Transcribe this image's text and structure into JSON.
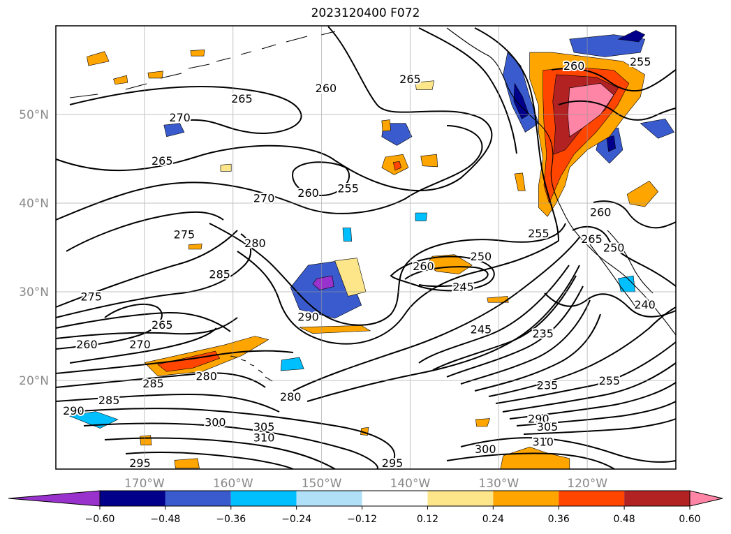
{
  "title": "2023120400 F072",
  "map": {
    "lon_range": [
      -180,
      -110
    ],
    "lat_range": [
      10,
      60
    ],
    "grid": true,
    "lon_labels": [
      {
        "lon": -170,
        "text": "170°W"
      },
      {
        "lon": -160,
        "text": "160°W"
      },
      {
        "lon": -150,
        "text": "150°W"
      },
      {
        "lon": -140,
        "text": "140°W"
      },
      {
        "lon": -130,
        "text": "130°W"
      },
      {
        "lon": -120,
        "text": "120°W"
      }
    ],
    "lat_labels": [
      {
        "lat": 50,
        "text": "50°N"
      },
      {
        "lat": 40,
        "text": "40°N"
      },
      {
        "lat": 30,
        "text": "30°N"
      },
      {
        "lat": 20,
        "text": "20°N"
      }
    ],
    "contour_labels": [
      {
        "text": "265",
        "lon": -168,
        "lat": 44.8
      },
      {
        "text": "265",
        "lon": -159,
        "lat": 51.8
      },
      {
        "text": "260",
        "lon": -149.5,
        "lat": 53
      },
      {
        "text": "265",
        "lon": -140,
        "lat": 54
      },
      {
        "text": "260",
        "lon": -121.5,
        "lat": 55.5
      },
      {
        "text": "255",
        "lon": -114,
        "lat": 56
      },
      {
        "text": "270",
        "lon": -166,
        "lat": 49.7
      },
      {
        "text": "270",
        "lon": -156.5,
        "lat": 40.6
      },
      {
        "text": "260",
        "lon": -151.5,
        "lat": 41.2
      },
      {
        "text": "255",
        "lon": -147,
        "lat": 41.7
      },
      {
        "text": "275",
        "lon": -165.5,
        "lat": 36.5
      },
      {
        "text": "280",
        "lon": -157.5,
        "lat": 35.5
      },
      {
        "text": "285",
        "lon": -161.5,
        "lat": 32
      },
      {
        "text": "275",
        "lon": -176,
        "lat": 29.5
      },
      {
        "text": "260",
        "lon": -176.5,
        "lat": 24.1
      },
      {
        "text": "270",
        "lon": -170.5,
        "lat": 24.1
      },
      {
        "text": "265",
        "lon": -168,
        "lat": 26.3
      },
      {
        "text": "290",
        "lon": -151.5,
        "lat": 27.2
      },
      {
        "text": "260",
        "lon": -138.5,
        "lat": 32.9
      },
      {
        "text": "250",
        "lon": -132,
        "lat": 34
      },
      {
        "text": "245",
        "lon": -134,
        "lat": 30.6
      },
      {
        "text": "255",
        "lon": -125.5,
        "lat": 36.6
      },
      {
        "text": "265",
        "lon": -119.5,
        "lat": 36
      },
      {
        "text": "250",
        "lon": -117,
        "lat": 35
      },
      {
        "text": "260",
        "lon": -118.5,
        "lat": 39
      },
      {
        "text": "240",
        "lon": -113.5,
        "lat": 28.6
      },
      {
        "text": "245",
        "lon": -132,
        "lat": 25.8
      },
      {
        "text": "235",
        "lon": -125,
        "lat": 25.3
      },
      {
        "text": "235",
        "lon": -124.5,
        "lat": 19.5
      },
      {
        "text": "255",
        "lon": -117.5,
        "lat": 20
      },
      {
        "text": "285",
        "lon": -169,
        "lat": 19.7
      },
      {
        "text": "280",
        "lon": -163,
        "lat": 20.5
      },
      {
        "text": "285",
        "lon": -174,
        "lat": 17.8
      },
      {
        "text": "290",
        "lon": -178,
        "lat": 16.6
      },
      {
        "text": "280",
        "lon": -153.5,
        "lat": 18.2
      },
      {
        "text": "300",
        "lon": -162,
        "lat": 15.3
      },
      {
        "text": "305",
        "lon": -156.5,
        "lat": 14.8
      },
      {
        "text": "310",
        "lon": -156.5,
        "lat": 13.6
      },
      {
        "text": "295",
        "lon": -170.5,
        "lat": 10.7
      },
      {
        "text": "295",
        "lon": -142,
        "lat": 10.7
      },
      {
        "text": "300",
        "lon": -131.5,
        "lat": 12.3
      },
      {
        "text": "290",
        "lon": -125.5,
        "lat": 15.7
      },
      {
        "text": "305",
        "lon": -124.5,
        "lat": 14.8
      },
      {
        "text": "310",
        "lon": -125,
        "lat": 13.1
      }
    ]
  },
  "colorbar": {
    "ticks": [
      "−0.60",
      "−0.48",
      "−0.36",
      "−0.24",
      "−0.12",
      "0.12",
      "0.24",
      "0.36",
      "0.48",
      "0.60"
    ],
    "colors": [
      "#9932cc",
      "#00008b",
      "#3a5bcd",
      "#00bfff",
      "#b0e0f8",
      "#ffffff",
      "#fde68a",
      "#ffa500",
      "#ff4500",
      "#b22222",
      "#ff85a6"
    ],
    "extend": "both"
  },
  "fill_patches": [
    {
      "color": "#3a5bcd",
      "points": [
        [
          -151.5,
          33
        ],
        [
          -148,
          33.5
        ],
        [
          -146.5,
          31
        ],
        [
          -145.5,
          28.5
        ],
        [
          -148.5,
          27
        ],
        [
          -152.5,
          28
        ],
        [
          -153.5,
          30.5
        ]
      ]
    },
    {
      "color": "#9932cc",
      "points": [
        [
          -150.5,
          31.5
        ],
        [
          -148.8,
          31.8
        ],
        [
          -148.6,
          30.6
        ],
        [
          -150.2,
          30.2
        ],
        [
          -151,
          30.9
        ]
      ]
    },
    {
      "color": "#3a5bcd",
      "points": [
        [
          -129,
          57
        ],
        [
          -127.5,
          55.5
        ],
        [
          -126.5,
          52
        ],
        [
          -125.5,
          49
        ],
        [
          -127,
          48
        ],
        [
          -128.5,
          51
        ],
        [
          -129.5,
          54.5
        ]
      ]
    },
    {
      "color": "#00008b",
      "points": [
        [
          -128.2,
          53.5
        ],
        [
          -127.3,
          52
        ],
        [
          -126.6,
          50
        ],
        [
          -127.4,
          49.5
        ],
        [
          -128.3,
          51.5
        ]
      ]
    },
    {
      "color": "#3a5bcd",
      "points": [
        [
          -122,
          58.5
        ],
        [
          -117,
          59
        ],
        [
          -113.5,
          58.5
        ],
        [
          -114,
          57
        ],
        [
          -118,
          56.5
        ],
        [
          -121.5,
          57
        ]
      ]
    },
    {
      "color": "#00008b",
      "points": [
        [
          -116.5,
          58.5
        ],
        [
          -114.5,
          59.5
        ],
        [
          -113.5,
          59
        ],
        [
          -114.2,
          58.2
        ]
      ]
    },
    {
      "color": "#3a5bcd",
      "points": [
        [
          -118.5,
          48
        ],
        [
          -116.5,
          48.5
        ],
        [
          -116,
          46
        ],
        [
          -117.5,
          44.5
        ],
        [
          -119,
          46
        ]
      ]
    },
    {
      "color": "#00008b",
      "points": [
        [
          -117.8,
          47.4
        ],
        [
          -117,
          47.6
        ],
        [
          -116.8,
          46.2
        ],
        [
          -117.6,
          45.8
        ]
      ]
    },
    {
      "color": "#3a5bcd",
      "points": [
        [
          -114,
          49
        ],
        [
          -111.2,
          49.5
        ],
        [
          -110.2,
          48
        ],
        [
          -112,
          47.3
        ]
      ]
    },
    {
      "color": "#3a5bcd",
      "points": [
        [
          -143,
          49
        ],
        [
          -140.5,
          49
        ],
        [
          -139.8,
          47.5
        ],
        [
          -141.5,
          46.5
        ],
        [
          -143.2,
          47.5
        ]
      ]
    },
    {
      "color": "#3a5bcd",
      "points": [
        [
          -167.8,
          48.8
        ],
        [
          -166,
          49
        ],
        [
          -165.5,
          48
        ],
        [
          -167.5,
          47.5
        ]
      ]
    },
    {
      "color": "#00bfff",
      "points": [
        [
          -178.5,
          16
        ],
        [
          -175.5,
          16.5
        ],
        [
          -173,
          15.6
        ],
        [
          -175,
          14.6
        ]
      ]
    },
    {
      "color": "#00bfff",
      "points": [
        [
          -154.5,
          22.3
        ],
        [
          -152.5,
          22.6
        ],
        [
          -152,
          21.3
        ],
        [
          -154.6,
          21.1
        ]
      ]
    },
    {
      "color": "#00bfff",
      "points": [
        [
          -147.6,
          37.2
        ],
        [
          -146.7,
          37.2
        ],
        [
          -146.6,
          35.7
        ],
        [
          -147.5,
          35.7
        ]
      ]
    },
    {
      "color": "#00bfff",
      "points": [
        [
          -139.4,
          38.9
        ],
        [
          -138.1,
          38.9
        ],
        [
          -138.2,
          38
        ],
        [
          -139.4,
          38
        ]
      ]
    },
    {
      "color": "#00bfff",
      "points": [
        [
          -116.5,
          31.5
        ],
        [
          -114.8,
          31.8
        ],
        [
          -114.6,
          30
        ],
        [
          -116.2,
          30
        ]
      ]
    },
    {
      "color": "#ffa500",
      "points": [
        [
          -170,
          22
        ],
        [
          -165.5,
          23
        ],
        [
          -161,
          24
        ],
        [
          -157.5,
          25
        ],
        [
          -156,
          24.6
        ],
        [
          -159,
          22.8
        ],
        [
          -163.5,
          21
        ],
        [
          -168.5,
          20.5
        ]
      ]
    },
    {
      "color": "#ff4500",
      "points": [
        [
          -168.5,
          21.8
        ],
        [
          -165.5,
          22.5
        ],
        [
          -162,
          23.3
        ],
        [
          -161.5,
          22.5
        ],
        [
          -164.5,
          21.4
        ],
        [
          -167.5,
          21
        ]
      ]
    },
    {
      "color": "#ffa500",
      "points": [
        [
          -152.5,
          26
        ],
        [
          -145.5,
          26.2
        ],
        [
          -144.5,
          25.6
        ],
        [
          -151,
          25.3
        ]
      ]
    },
    {
      "color": "#ffa500",
      "points": [
        [
          -137.5,
          34
        ],
        [
          -135,
          34.2
        ],
        [
          -133,
          33
        ],
        [
          -134.5,
          32
        ],
        [
          -137,
          32.3
        ],
        [
          -138.2,
          33
        ]
      ]
    },
    {
      "color": "#ffa500",
      "points": [
        [
          -142.8,
          45.2
        ],
        [
          -140.8,
          45.5
        ],
        [
          -140.2,
          44
        ],
        [
          -141.8,
          43.2
        ],
        [
          -143.2,
          44
        ]
      ]
    },
    {
      "color": "#ff4500",
      "points": [
        [
          -141.9,
          44.6
        ],
        [
          -141.2,
          44.7
        ],
        [
          -141,
          44
        ],
        [
          -141.7,
          43.7
        ]
      ]
    },
    {
      "color": "#ffa500",
      "points": [
        [
          -126.5,
          57
        ],
        [
          -124,
          57
        ],
        [
          -120,
          56.5
        ],
        [
          -116,
          56
        ],
        [
          -113.5,
          54.5
        ],
        [
          -114,
          52
        ],
        [
          -116,
          49.5
        ],
        [
          -117.5,
          47.5
        ],
        [
          -120,
          46
        ],
        [
          -122,
          44
        ],
        [
          -122.5,
          42
        ],
        [
          -123.5,
          40
        ],
        [
          -124.5,
          38.5
        ],
        [
          -125.5,
          39.5
        ],
        [
          -125.5,
          42
        ],
        [
          -125,
          45
        ],
        [
          -125.5,
          48
        ],
        [
          -125.5,
          51
        ],
        [
          -126.5,
          54
        ]
      ]
    },
    {
      "color": "#ff4500",
      "points": [
        [
          -125,
          55
        ],
        [
          -121,
          55.3
        ],
        [
          -117,
          55
        ],
        [
          -115.3,
          53.5
        ],
        [
          -116.6,
          51
        ],
        [
          -119,
          48
        ],
        [
          -121.5,
          45.5
        ],
        [
          -123,
          43
        ],
        [
          -124.3,
          40
        ],
        [
          -124.9,
          42
        ],
        [
          -124.6,
          45.5
        ],
        [
          -124.9,
          49
        ],
        [
          -125,
          52
        ]
      ]
    },
    {
      "color": "#b22222",
      "points": [
        [
          -123.5,
          54.5
        ],
        [
          -119,
          54.2
        ],
        [
          -116.5,
          53
        ],
        [
          -118,
          50.5
        ],
        [
          -120.5,
          48.5
        ],
        [
          -122.5,
          46
        ],
        [
          -123.8,
          45.5
        ],
        [
          -123.6,
          48.5
        ],
        [
          -123.9,
          51.5
        ]
      ]
    },
    {
      "color": "#ff85a6",
      "points": [
        [
          -122,
          53
        ],
        [
          -118.5,
          53.5
        ],
        [
          -117,
          52.2
        ],
        [
          -118.5,
          50
        ],
        [
          -120.5,
          48.5
        ],
        [
          -122,
          47.5
        ],
        [
          -122.2,
          50
        ]
      ]
    },
    {
      "color": "#ffa500",
      "points": [
        [
          -129.5,
          11.5
        ],
        [
          -126.5,
          12.5
        ],
        [
          -124.5,
          11.8
        ],
        [
          -122,
          11.2
        ],
        [
          -122,
          10
        ],
        [
          -129.8,
          10
        ]
      ]
    },
    {
      "color": "#ffa500",
      "points": [
        [
          -115.5,
          41
        ],
        [
          -113,
          42.5
        ],
        [
          -112,
          41.3
        ],
        [
          -113.5,
          39.6
        ],
        [
          -115.2,
          39.9
        ]
      ]
    },
    {
      "color": "#ffa500",
      "points": [
        [
          -176.5,
          56.5
        ],
        [
          -174.5,
          57.1
        ],
        [
          -174,
          56
        ],
        [
          -176.3,
          55.5
        ]
      ]
    },
    {
      "color": "#ffa500",
      "points": [
        [
          -173.5,
          54
        ],
        [
          -172,
          54.4
        ],
        [
          -171.9,
          53.6
        ],
        [
          -173.3,
          53.4
        ]
      ]
    },
    {
      "color": "#ffa500",
      "points": [
        [
          -164.8,
          57.2
        ],
        [
          -163.2,
          57.3
        ],
        [
          -163.3,
          56.6
        ],
        [
          -164.7,
          56.6
        ]
      ]
    },
    {
      "color": "#ffa500",
      "points": [
        [
          -169.6,
          54.7
        ],
        [
          -167.9,
          54.9
        ],
        [
          -168,
          54.1
        ],
        [
          -169.5,
          54.1
        ]
      ]
    },
    {
      "color": "#ffa500",
      "points": [
        [
          -165,
          35.3
        ],
        [
          -163.5,
          35.4
        ],
        [
          -163.6,
          34.8
        ],
        [
          -165,
          34.8
        ]
      ]
    },
    {
      "color": "#ffa500",
      "points": [
        [
          -143.2,
          49.3
        ],
        [
          -142.3,
          49.4
        ],
        [
          -142.2,
          48.2
        ],
        [
          -143.1,
          48.1
        ]
      ]
    },
    {
      "color": "#ffa500",
      "points": [
        [
          -138.8,
          45.3
        ],
        [
          -137,
          45.5
        ],
        [
          -136.9,
          44.1
        ],
        [
          -138.6,
          44.2
        ]
      ]
    },
    {
      "color": "#ffa500",
      "points": [
        [
          -166.6,
          11
        ],
        [
          -164,
          11.2
        ],
        [
          -163.8,
          10.1
        ],
        [
          -166.5,
          10.1
        ]
      ]
    },
    {
      "color": "#ffa500",
      "points": [
        [
          -170.5,
          13.7
        ],
        [
          -169.3,
          13.8
        ],
        [
          -169.2,
          12.7
        ],
        [
          -170.4,
          12.7
        ]
      ]
    },
    {
      "color": "#ffa500",
      "points": [
        [
          -145.5,
          14.6
        ],
        [
          -144.7,
          14.7
        ],
        [
          -144.8,
          13.8
        ],
        [
          -145.6,
          13.9
        ]
      ]
    },
    {
      "color": "#ffa500",
      "points": [
        [
          -132.6,
          15.6
        ],
        [
          -131,
          15.7
        ],
        [
          -131.3,
          14.8
        ],
        [
          -132.5,
          14.8
        ]
      ]
    },
    {
      "color": "#ffa500",
      "points": [
        [
          -131.3,
          29.3
        ],
        [
          -129,
          29.5
        ],
        [
          -128.9,
          28.8
        ],
        [
          -131.2,
          28.8
        ]
      ]
    },
    {
      "color": "#ffa500",
      "points": [
        [
          -128.2,
          43.3
        ],
        [
          -127.3,
          43.4
        ],
        [
          -127,
          41.4
        ],
        [
          -127.8,
          41.4
        ]
      ]
    },
    {
      "color": "#fde68a",
      "points": [
        [
          -148.5,
          33.5
        ],
        [
          -146,
          33.8
        ],
        [
          -145,
          30
        ],
        [
          -147,
          29.5
        ]
      ]
    },
    {
      "color": "#fde68a",
      "points": [
        [
          -161.4,
          44.3
        ],
        [
          -160.2,
          44.4
        ],
        [
          -160.2,
          43.6
        ],
        [
          -161.4,
          43.6
        ]
      ]
    },
    {
      "color": "#fde68a",
      "points": [
        [
          -139.4,
          53.6
        ],
        [
          -137.3,
          53.8
        ],
        [
          -137.5,
          52.8
        ],
        [
          -139.3,
          52.8
        ]
      ]
    }
  ]
}
